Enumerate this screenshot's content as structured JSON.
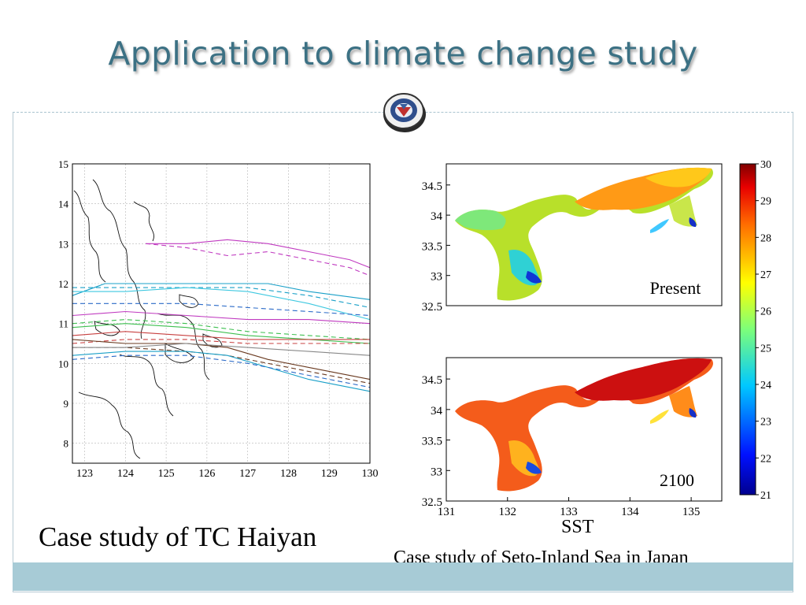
{
  "slide": {
    "title": "Application to climate change study",
    "caption_left": "Case study of TC Haiyan",
    "caption_right_1": "SST",
    "caption_right_2": "Case study of Seto-Inland Sea in Japan"
  },
  "logo": {
    "icon": "institution-seal-icon"
  },
  "track_plot": {
    "x_ticks": [
      "123",
      "124",
      "125",
      "126",
      "127",
      "128",
      "129",
      "130"
    ],
    "y_ticks": [
      "15",
      "14",
      "13",
      "12",
      "11",
      "10",
      "9",
      "8"
    ],
    "xlim": [
      122.7,
      130
    ],
    "ylim": [
      7.5,
      15
    ],
    "grid": true
  },
  "sst_maps": {
    "panels": [
      {
        "label": "Present"
      },
      {
        "label": "2100"
      }
    ],
    "y_ticks": [
      "34.5",
      "34",
      "33.5",
      "33",
      "32.5"
    ],
    "x_ticks": [
      "131",
      "132",
      "133",
      "134",
      "135"
    ],
    "colorbar_ticks": [
      "30",
      "29",
      "28",
      "27",
      "26",
      "25",
      "24",
      "23",
      "22",
      "21"
    ],
    "colorbar_range": [
      21,
      30
    ]
  },
  "colors": {
    "title": "#3c7184",
    "bottom_bar": "#a7cbd6",
    "frame": "#b7c9d3"
  }
}
